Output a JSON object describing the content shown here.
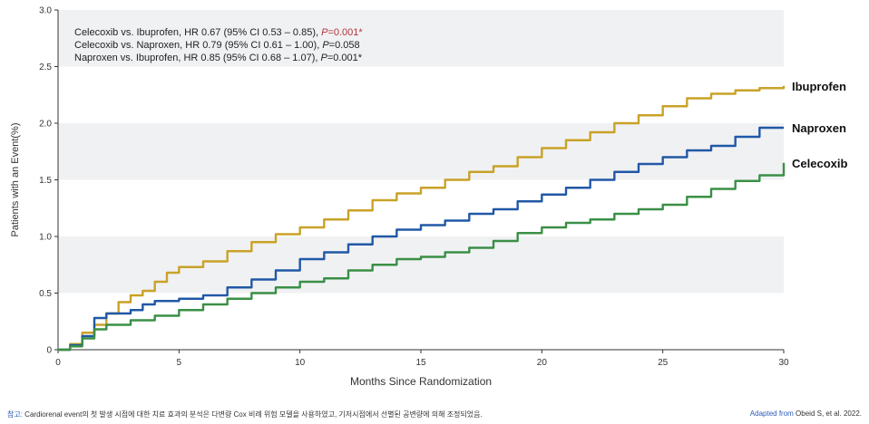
{
  "chart_data": {
    "type": "line",
    "title": "",
    "xlabel": "Months Since Randomization",
    "ylabel": "Patients with an Event(%)",
    "xlim": [
      0,
      30
    ],
    "ylim": [
      0,
      3.0
    ],
    "x_ticks": [
      "0",
      "5",
      "10",
      "15",
      "20",
      "25",
      "30"
    ],
    "y_ticks": [
      "0",
      "0.5",
      "1.0",
      "1.5",
      "2.0",
      "2.5",
      "3.0"
    ],
    "grid": "horizontal alternating bands",
    "series": [
      {
        "name": "Ibuprofen",
        "color": "#c9a227",
        "points": [
          [
            0,
            0
          ],
          [
            0.5,
            0.05
          ],
          [
            1,
            0.15
          ],
          [
            1.5,
            0.22
          ],
          [
            2,
            0.32
          ],
          [
            2.5,
            0.42
          ],
          [
            3,
            0.48
          ],
          [
            3.5,
            0.52
          ],
          [
            4,
            0.6
          ],
          [
            4.5,
            0.68
          ],
          [
            5,
            0.73
          ],
          [
            6,
            0.78
          ],
          [
            7,
            0.87
          ],
          [
            8,
            0.95
          ],
          [
            9,
            1.02
          ],
          [
            10,
            1.08
          ],
          [
            11,
            1.15
          ],
          [
            12,
            1.23
          ],
          [
            13,
            1.32
          ],
          [
            14,
            1.38
          ],
          [
            15,
            1.43
          ],
          [
            16,
            1.5
          ],
          [
            17,
            1.57
          ],
          [
            18,
            1.62
          ],
          [
            19,
            1.7
          ],
          [
            20,
            1.78
          ],
          [
            21,
            1.85
          ],
          [
            22,
            1.92
          ],
          [
            23,
            2.0
          ],
          [
            24,
            2.07
          ],
          [
            25,
            2.15
          ],
          [
            26,
            2.22
          ],
          [
            27,
            2.26
          ],
          [
            28,
            2.29
          ],
          [
            29,
            2.31
          ],
          [
            30,
            2.33
          ]
        ]
      },
      {
        "name": "Naproxen",
        "color": "#2158a6",
        "points": [
          [
            0,
            0
          ],
          [
            0.5,
            0.04
          ],
          [
            1,
            0.12
          ],
          [
            1.5,
            0.28
          ],
          [
            2,
            0.32
          ],
          [
            3,
            0.35
          ],
          [
            3.5,
            0.4
          ],
          [
            4,
            0.43
          ],
          [
            5,
            0.45
          ],
          [
            6,
            0.48
          ],
          [
            7,
            0.55
          ],
          [
            8,
            0.62
          ],
          [
            9,
            0.7
          ],
          [
            10,
            0.8
          ],
          [
            11,
            0.86
          ],
          [
            12,
            0.93
          ],
          [
            13,
            1.0
          ],
          [
            14,
            1.06
          ],
          [
            15,
            1.1
          ],
          [
            16,
            1.14
          ],
          [
            17,
            1.2
          ],
          [
            18,
            1.24
          ],
          [
            19,
            1.31
          ],
          [
            20,
            1.37
          ],
          [
            21,
            1.43
          ],
          [
            22,
            1.5
          ],
          [
            23,
            1.57
          ],
          [
            24,
            1.64
          ],
          [
            25,
            1.7
          ],
          [
            26,
            1.76
          ],
          [
            27,
            1.8
          ],
          [
            28,
            1.88
          ],
          [
            29,
            1.96
          ],
          [
            30,
            1.96
          ]
        ]
      },
      {
        "name": "Celecoxib",
        "color": "#3a8f46",
        "points": [
          [
            0,
            0
          ],
          [
            0.5,
            0.03
          ],
          [
            1,
            0.1
          ],
          [
            1.5,
            0.18
          ],
          [
            2,
            0.22
          ],
          [
            3,
            0.26
          ],
          [
            4,
            0.3
          ],
          [
            5,
            0.35
          ],
          [
            6,
            0.4
          ],
          [
            7,
            0.45
          ],
          [
            8,
            0.5
          ],
          [
            9,
            0.55
          ],
          [
            10,
            0.6
          ],
          [
            11,
            0.63
          ],
          [
            12,
            0.7
          ],
          [
            13,
            0.75
          ],
          [
            14,
            0.8
          ],
          [
            15,
            0.82
          ],
          [
            16,
            0.86
          ],
          [
            17,
            0.9
          ],
          [
            18,
            0.96
          ],
          [
            19,
            1.03
          ],
          [
            20,
            1.08
          ],
          [
            21,
            1.12
          ],
          [
            22,
            1.15
          ],
          [
            23,
            1.2
          ],
          [
            24,
            1.24
          ],
          [
            25,
            1.28
          ],
          [
            26,
            1.35
          ],
          [
            27,
            1.42
          ],
          [
            28,
            1.49
          ],
          [
            29,
            1.54
          ],
          [
            30,
            1.65
          ]
        ]
      }
    ],
    "annotations": [
      {
        "text": "Celecoxib vs. Ibuprofen, HR 0.67 (95% CI 0.53 – 0.85), ",
        "p_label": "P",
        "p_value": "=0.001*",
        "p_color": "#b3343a"
      },
      {
        "text": "Celecoxib vs. Naproxen, HR 0.79 (95% CI 0.61 – 1.00), ",
        "p_label": "P",
        "p_value": "=0.058",
        "p_color": "#222222"
      },
      {
        "text": "Naproxen vs. Ibuprofen, HR 0.85 (95% CI 0.68 – 1.07), ",
        "p_label": "P",
        "p_value": "=0.001*",
        "p_color": "#222222"
      }
    ],
    "legend_placement": "right-of-line-ends"
  },
  "footer": {
    "note_label": "참고:",
    "note_text": " Cardiorenal event의 첫 발생 시점에 대한 치료 효과의 분석은 다변량 Cox 비례 위험 모델을 사용하였고, 기저시점에서 선별된 공변량에 의해 조정되었음.",
    "source_prefix": "Adapted from",
    "source_suffix": " Obeid S, et al. 2022."
  }
}
